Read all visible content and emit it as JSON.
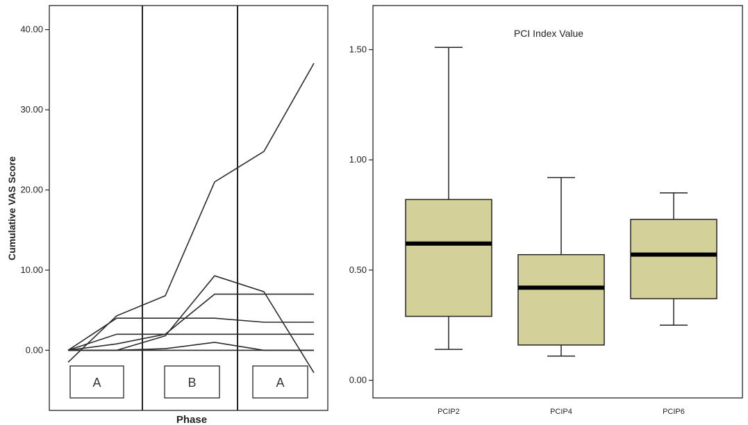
{
  "chart_data": [
    {
      "type": "line",
      "title": "",
      "xlabel": "Phase",
      "ylabel": "Cumulative VAS Score",
      "ylim": [
        -7.5,
        43
      ],
      "y_ticks": [
        "0.00",
        "10.00",
        "20.00",
        "30.00",
        "40.00"
      ],
      "phase_labels": [
        "A",
        "B",
        "A"
      ],
      "x": [
        1,
        2,
        3,
        4,
        5,
        6
      ],
      "series": [
        {
          "values": [
            -1.5,
            4.3,
            6.8,
            21.0,
            24.8,
            35.8
          ]
        },
        {
          "values": [
            0,
            4.0,
            4.0,
            4.0,
            3.5,
            3.5
          ]
        },
        {
          "values": [
            0,
            0.8,
            2.0,
            7.0,
            7.0,
            7.0
          ]
        },
        {
          "values": [
            0,
            2.0,
            2.0,
            2.0,
            2.0,
            2.0
          ]
        },
        {
          "values": [
            0,
            0,
            0.2,
            1.0,
            0,
            0
          ]
        },
        {
          "values": [
            0,
            0,
            1.8,
            9.3,
            7.3,
            -2.8
          ]
        },
        {
          "values": [
            0,
            0,
            0,
            0,
            0,
            0
          ]
        }
      ]
    },
    {
      "type": "box",
      "title": "PCI Index Value",
      "ylim": [
        -0.08,
        1.7
      ],
      "y_ticks": [
        "0.00",
        "0.50",
        "1.00",
        "1.50"
      ],
      "categories": [
        "PCIP2",
        "PCIP4",
        "PCIP6"
      ],
      "box_color": "#d4d09a",
      "boxes": [
        {
          "min": 0.14,
          "q1": 0.29,
          "median": 0.62,
          "q3": 0.82,
          "max": 1.51
        },
        {
          "min": 0.11,
          "q1": 0.16,
          "median": 0.42,
          "q3": 0.57,
          "max": 0.92
        },
        {
          "min": 0.25,
          "q1": 0.37,
          "median": 0.57,
          "q3": 0.73,
          "max": 0.85
        }
      ]
    }
  ]
}
